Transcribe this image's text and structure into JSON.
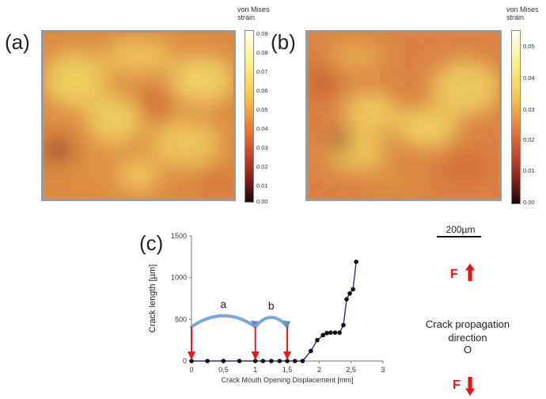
{
  "panels": {
    "a": {
      "label": "(a)",
      "colorbar": {
        "title_line1": "von Mises",
        "title_line2": "strain",
        "ticks": [
          "0.09",
          "0.08",
          "0.07",
          "0.06",
          "0.05",
          "0.04",
          "0.03",
          "0.02",
          "0.01",
          "0.00"
        ]
      }
    },
    "b": {
      "label": "(b)",
      "colorbar": {
        "title_line1": "von Mises",
        "title_line2": "strain",
        "ticks": [
          "0.05",
          "0.04",
          "0.03",
          "0.02",
          "0.01",
          "0.00"
        ]
      }
    },
    "c": {
      "label": "(c)"
    }
  },
  "scale_bar": {
    "label": "200µm"
  },
  "force": {
    "up_label": "F",
    "down_label": "F"
  },
  "crack_direction": {
    "line1": "Crack propagation",
    "line2": "direction",
    "marker": "O"
  },
  "chart_data": {
    "type": "line",
    "xlabel": "Crack Mouth Opening Displacement [mm]",
    "ylabel": "Crack length [µm]",
    "xlim": [
      0,
      3
    ],
    "ylim": [
      0,
      1500
    ],
    "xticks": [
      0,
      0.5,
      1,
      1.5,
      2,
      2.5,
      3
    ],
    "xtick_labels": [
      "0",
      "0,5",
      "1",
      "1,5",
      "2",
      "2,5",
      "3"
    ],
    "yticks": [
      0,
      500,
      1000,
      1500
    ],
    "ytick_labels": [
      "0",
      "500",
      "1000",
      "1500"
    ],
    "series": [
      {
        "color": "#2b2b8a",
        "x": [
          0,
          0.25,
          0.5,
          0.75,
          1.0,
          1.12,
          1.25,
          1.38,
          1.5,
          1.62,
          1.74,
          1.87,
          1.97,
          2.06,
          2.12,
          2.18,
          2.25,
          2.32,
          2.38,
          2.43,
          2.48,
          2.53,
          2.58
        ],
        "y": [
          0,
          0,
          0,
          0,
          0,
          0,
          0,
          0,
          0,
          0,
          0,
          120,
          250,
          310,
          335,
          340,
          340,
          340,
          430,
          740,
          810,
          860,
          1190
        ]
      }
    ],
    "annotations": [
      {
        "text": "a",
        "from_x": 0,
        "to_x": 1.0
      },
      {
        "text": "b",
        "from_x": 1.0,
        "to_x": 1.5
      }
    ],
    "red_arrow_x": [
      0,
      1.0,
      1.5
    ],
    "red_arrow_top_y": 410
  }
}
